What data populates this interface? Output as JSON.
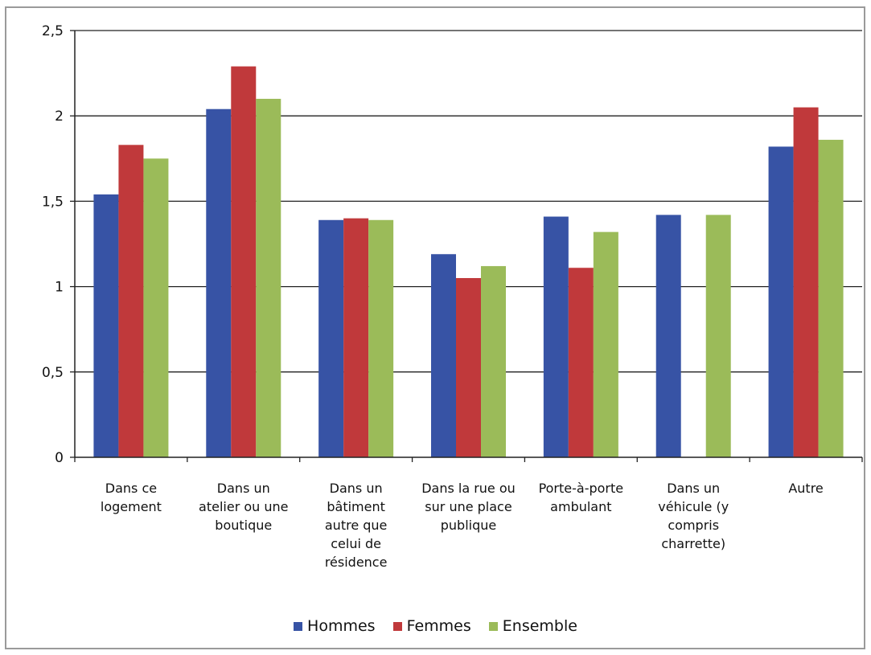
{
  "colors": {
    "hommes": "#3753a5",
    "femmes": "#c0393b",
    "ensemble": "#9bbb59"
  },
  "chart_data": {
    "type": "bar",
    "title": "",
    "xlabel": "",
    "ylabel": "",
    "ylim": [
      0,
      2.5
    ],
    "yticks": [
      "0",
      "0,5",
      "1",
      "1,5",
      "2",
      "2,5"
    ],
    "ytick_values": [
      0,
      0.5,
      1,
      1.5,
      2,
      2.5
    ],
    "grid": true,
    "legend_position": "bottom",
    "categories": [
      [
        "Dans ce",
        "logement"
      ],
      [
        "Dans un",
        "atelier ou une",
        "boutique"
      ],
      [
        "Dans un",
        "bâtiment",
        "autre que",
        "celui de",
        "résidence"
      ],
      [
        "Dans la rue ou",
        "sur une place",
        "publique"
      ],
      [
        "Porte-à-porte",
        "ambulant"
      ],
      [
        "Dans un",
        "véhicule (y",
        "compris",
        "charrette)"
      ],
      [
        "Autre"
      ]
    ],
    "series": [
      {
        "name": "Hommes",
        "values": [
          1.54,
          2.04,
          1.39,
          1.19,
          1.41,
          1.42,
          1.82
        ]
      },
      {
        "name": "Femmes",
        "values": [
          1.83,
          2.29,
          1.4,
          1.05,
          1.11,
          null,
          2.05
        ]
      },
      {
        "name": "Ensemble",
        "values": [
          1.75,
          2.1,
          1.39,
          1.12,
          1.32,
          1.42,
          1.86
        ]
      }
    ]
  }
}
